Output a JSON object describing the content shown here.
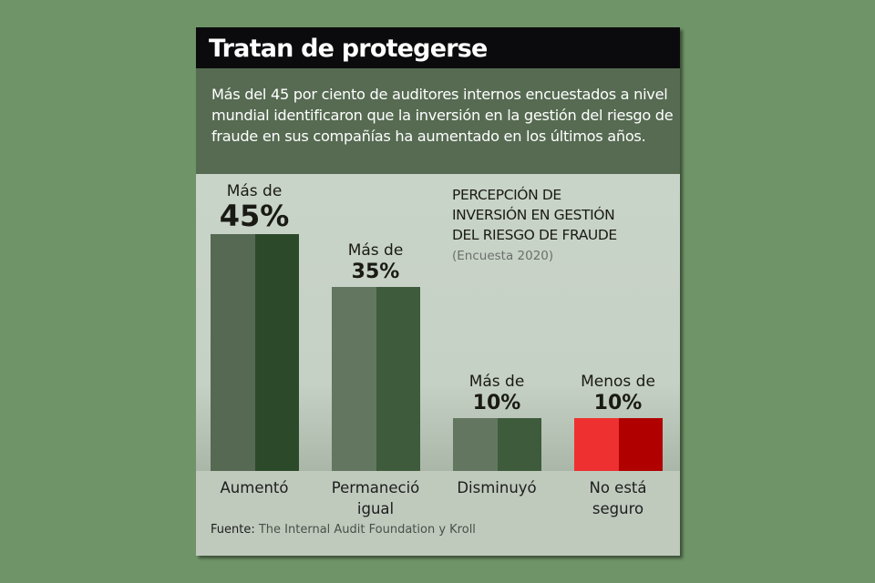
{
  "title": "Tratan de protegerse",
  "intro": "Más del 45 por ciento de auditores internos encuestados a nivel mundial identificaron que la inversión en la gestión del riesgo de fraude en sus compañías ha aumentado en los últimos años.",
  "chart_data": {
    "type": "bar",
    "title": "PERCEPCIÓN DE\nINVERSIÓN EN GESTIÓN\nDEL RIESGO DE FRAUDE",
    "subtitle": "(Encuesta 2020)",
    "categories": [
      "Aumentó",
      "Permaneció\nigual",
      "Disminuyó",
      "No está\nseguro"
    ],
    "values": [
      45,
      35,
      10,
      10
    ],
    "value_prefixes": [
      "Más de",
      "Más de",
      "Más de",
      "Menos de"
    ],
    "value_labels": [
      "45%",
      "35%",
      "10%",
      "10%"
    ],
    "colors": [
      [
        "#566a53",
        "#2c4a29"
      ],
      [
        "#627660",
        "#3e5b3b"
      ],
      [
        "#627660",
        "#3e5b3b"
      ],
      [
        "#ee3030",
        "#b00000"
      ]
    ],
    "ylabel": "",
    "xlabel": "",
    "grid": false
  },
  "source": {
    "label": "Fuente:",
    "text": "The Internal Audit Foundation y Kroll"
  }
}
